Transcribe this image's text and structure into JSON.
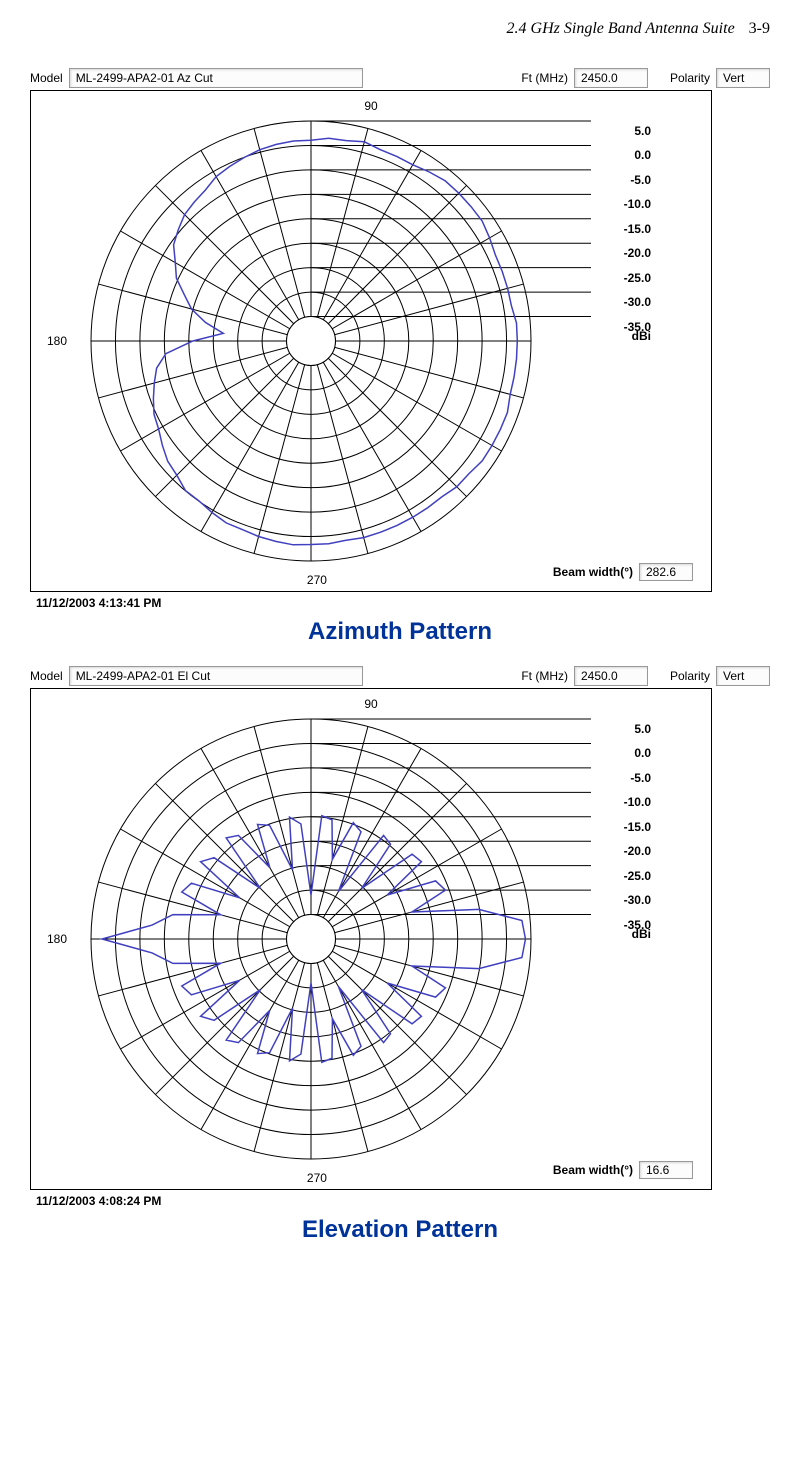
{
  "header": {
    "title": "2.4 GHz Single Band Antenna Suite",
    "page": "3-9"
  },
  "common": {
    "model_label": "Model",
    "ft_label": "Ft (MHz)",
    "polarity_label": "Polarity",
    "beam_label": "Beam width(°)",
    "unit": "dBi",
    "angle_top": "90",
    "angle_bottom": "270",
    "angle_left": "180",
    "ring_labels": [
      "5.0",
      "0.0",
      "-5.0",
      "-10.0",
      "-15.0",
      "-20.0",
      "-25.0",
      "-30.0",
      "-35.0"
    ],
    "grid_color": "#000000",
    "trace_color": "#4040c0",
    "background": "#ffffff",
    "title_color": "#003399",
    "n_rings": 9,
    "n_spokes": 24,
    "r_min_db": -35.0,
    "r_max_db": 5.0
  },
  "azimuth": {
    "model": "ML-2499-APA2-01  Az Cut",
    "ft": "2450.0",
    "polarity": "Vert",
    "beam_width": "282.6",
    "timestamp": "11/12/2003  4:13:41 PM",
    "title": "Azimuth Pattern",
    "trace_db": [
      2.5,
      2.5,
      2.0,
      2.0,
      2.0,
      2.0,
      2.5,
      3.0,
      3.0,
      3.0,
      3.0,
      2.5,
      2.0,
      2.0,
      2.0,
      2.5,
      2.0,
      2.0,
      1.5,
      1.5,
      1.3,
      1.0,
      0.5,
      0.0,
      -0.5,
      -1.5,
      -2.0,
      -2.5,
      -3.5,
      -4.5,
      -6.5,
      -8.0,
      -10.5,
      -12.5,
      -15.5,
      -19.0,
      -13.5,
      -8.5,
      -6.5,
      -5.5,
      -4.5,
      -3.5,
      -3.0,
      -2.0,
      -1.0,
      -0.5,
      0.5,
      0.5,
      1.0,
      1.5,
      1.5,
      1.8,
      2.0,
      2.2,
      2.0,
      2.0,
      1.8,
      2.0,
      2.0,
      2.0,
      2.0,
      2.0,
      2.0,
      2.5,
      2.5,
      3.0,
      3.0,
      3.0,
      3.0,
      2.5,
      2.5,
      2.5
    ]
  },
  "elevation": {
    "model": "ML-2499-APA2-01  El Cut",
    "ft": "2450.0",
    "polarity": "Vert",
    "beam_width": "16.6",
    "timestamp": "11/12/2003  4:08:24 PM",
    "title": "Elevation Pattern",
    "trace_db": [
      4.0,
      3.5,
      -4.0,
      -16.0,
      -9.0,
      -10.0,
      -19.0,
      -10.5,
      -11.0,
      -22.0,
      -12.5,
      -12.0,
      -25.0,
      -13.5,
      -12.5,
      -20.0,
      -13.0,
      -12.5,
      -27.0,
      -14.0,
      -12.5,
      -22.0,
      -13.0,
      -12.0,
      -20.0,
      -12.0,
      -11.0,
      -22.0,
      -12.0,
      -10.5,
      -20.0,
      -11.0,
      -10.0,
      -18.0,
      -9.5,
      -6.0,
      3.0,
      -6.0,
      -9.5,
      -18.0,
      -10.0,
      -11.0,
      -20.0,
      -10.5,
      -12.0,
      -22.0,
      -11.0,
      -12.0,
      -20.0,
      -12.0,
      -13.0,
      -22.0,
      -12.5,
      -14.0,
      -27.0,
      -12.5,
      -13.0,
      -20.0,
      -12.5,
      -13.5,
      -25.0,
      -12.0,
      -12.5,
      -22.0,
      -11.0,
      -10.5,
      -19.0,
      -10.0,
      -9.0,
      -16.0,
      -4.0,
      3.5
    ]
  }
}
